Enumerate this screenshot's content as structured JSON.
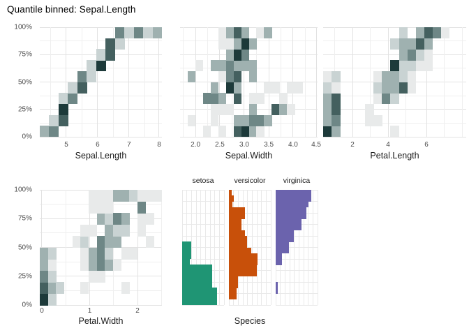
{
  "title": "Quantile binned: Sepal.Length",
  "palette": {
    "shades": [
      "#e8eaea",
      "#c9d3d3",
      "#9fb1b0",
      "#6e8786",
      "#44605f",
      "#1d3a3a"
    ],
    "grid_major": "#e2e2e2",
    "grid_minor": "#efefef",
    "species_grid": "#e9e9e9",
    "tick_text": "#4d4d4d",
    "axis_title_text": "#1a1a1a",
    "title_text": "#000000"
  },
  "y_axis": {
    "ticks": [
      {
        "label": "0%",
        "pos": 0
      },
      {
        "label": "25%",
        "pos": 0.25
      },
      {
        "label": "50%",
        "pos": 0.5
      },
      {
        "label": "75%",
        "pos": 0.75
      },
      {
        "label": "100%",
        "pos": 1
      }
    ]
  },
  "chart_data": {
    "type": "heatmap",
    "description": "Quantile-binned 2D bin plots of iris variables vs quantile of Sepal.Length, plus per-species horizontal histograms of the quantile.",
    "quantile_variable": "Sepal.Length",
    "quantile_bins_heatmap": 10,
    "quantile_bins_histogram": 20,
    "heatmaps": [
      {
        "id": "sepal_length",
        "xlabel": "Sepal.Length",
        "x_range": [
          4.2,
          8.1
        ],
        "cols": 13,
        "x_ticks": [
          {
            "label": "5",
            "pos": 0.217
          },
          {
            "label": "6",
            "pos": 0.474
          },
          {
            "label": "7",
            "pos": 0.731
          },
          {
            "label": "8",
            "pos": 0.977
          }
        ],
        "x_minor": [
          0.089,
          0.346,
          0.603,
          0.86
        ],
        "tiles": [
          [
            1,
            1,
            3
          ],
          [
            2,
            1,
            4
          ],
          [
            2,
            2,
            2
          ],
          [
            3,
            2,
            5
          ],
          [
            3,
            3,
            6
          ],
          [
            3,
            4,
            2
          ],
          [
            4,
            4,
            4
          ],
          [
            4,
            5,
            2
          ],
          [
            5,
            5,
            5
          ],
          [
            5,
            6,
            4
          ],
          [
            6,
            6,
            2
          ],
          [
            6,
            7,
            2
          ],
          [
            7,
            7,
            6
          ],
          [
            7,
            8,
            2
          ],
          [
            8,
            8,
            5
          ],
          [
            8,
            9,
            5
          ],
          [
            9,
            9,
            2
          ],
          [
            9,
            10,
            4
          ],
          [
            10,
            10,
            2
          ],
          [
            11,
            10,
            4
          ],
          [
            12,
            10,
            2
          ],
          [
            13,
            10,
            3
          ]
        ]
      },
      {
        "id": "sepal_width",
        "xlabel": "Sepal.Width",
        "x_range": [
          1.7,
          4.55
        ],
        "cols": 18,
        "x_ticks": [
          {
            "label": "2.0",
            "pos": 0.112
          },
          {
            "label": "2.5",
            "pos": 0.289
          },
          {
            "label": "3.0",
            "pos": 0.467
          },
          {
            "label": "3.5",
            "pos": 0.645
          },
          {
            "label": "4.0",
            "pos": 0.822
          },
          {
            "label": "4.5",
            "pos": 0.99
          }
        ],
        "x_minor": [
          0.023,
          0.2,
          0.378,
          0.556,
          0.733,
          0.911
        ],
        "tiles": [
          [
            4,
            1,
            1
          ],
          [
            6,
            1,
            1
          ],
          [
            8,
            1,
            5
          ],
          [
            9,
            1,
            6
          ],
          [
            10,
            1,
            3
          ],
          [
            11,
            1,
            1
          ],
          [
            2,
            2,
            1
          ],
          [
            5,
            2,
            1
          ],
          [
            8,
            2,
            3
          ],
          [
            9,
            2,
            3
          ],
          [
            10,
            2,
            4
          ],
          [
            11,
            2,
            4
          ],
          [
            12,
            2,
            3
          ],
          [
            5,
            3,
            1
          ],
          [
            6,
            3,
            1
          ],
          [
            7,
            3,
            1
          ],
          [
            10,
            3,
            3
          ],
          [
            13,
            3,
            5
          ],
          [
            14,
            3,
            3
          ],
          [
            15,
            3,
            1
          ],
          [
            4,
            4,
            4
          ],
          [
            5,
            4,
            4
          ],
          [
            6,
            4,
            3
          ],
          [
            8,
            4,
            5
          ],
          [
            10,
            4,
            1
          ],
          [
            11,
            4,
            1
          ],
          [
            14,
            4,
            1
          ],
          [
            5,
            5,
            3
          ],
          [
            7,
            5,
            6
          ],
          [
            8,
            5,
            3
          ],
          [
            12,
            5,
            1
          ],
          [
            13,
            5,
            1
          ],
          [
            15,
            5,
            1
          ],
          [
            16,
            5,
            1
          ],
          [
            2,
            6,
            3
          ],
          [
            6,
            6,
            1
          ],
          [
            7,
            6,
            4
          ],
          [
            8,
            6,
            5
          ],
          [
            10,
            6,
            3
          ],
          [
            3,
            7,
            1
          ],
          [
            5,
            7,
            3
          ],
          [
            6,
            7,
            3
          ],
          [
            7,
            7,
            4
          ],
          [
            8,
            7,
            3
          ],
          [
            9,
            7,
            3
          ],
          [
            10,
            7,
            3
          ],
          [
            7,
            8,
            3
          ],
          [
            8,
            8,
            6
          ],
          [
            9,
            8,
            4
          ],
          [
            6,
            9,
            1
          ],
          [
            7,
            9,
            1
          ],
          [
            8,
            9,
            3
          ],
          [
            9,
            9,
            6
          ],
          [
            10,
            9,
            3
          ],
          [
            6,
            10,
            1
          ],
          [
            7,
            10,
            3
          ],
          [
            8,
            10,
            5
          ],
          [
            9,
            10,
            3
          ],
          [
            11,
            10,
            1
          ],
          [
            12,
            10,
            3
          ]
        ]
      },
      {
        "id": "petal_length",
        "xlabel": "Petal.Length",
        "x_range": [
          0.6,
          8.0
        ],
        "cols": 17,
        "x_ticks": [
          {
            "label": "2",
            "pos": 0.205
          },
          {
            "label": "4",
            "pos": 0.454
          },
          {
            "label": "6",
            "pos": 0.722
          }
        ],
        "x_minor": [
          0.0805,
          0.3295,
          0.578,
          0.8465,
          0.971
        ],
        "tiles": [
          [
            1,
            1,
            6
          ],
          [
            2,
            1,
            3
          ],
          [
            9,
            1,
            1
          ],
          [
            1,
            2,
            3
          ],
          [
            2,
            2,
            4
          ],
          [
            6,
            2,
            1
          ],
          [
            7,
            2,
            1
          ],
          [
            1,
            3,
            3
          ],
          [
            2,
            3,
            5
          ],
          [
            6,
            3,
            1
          ],
          [
            1,
            4,
            3
          ],
          [
            2,
            4,
            5
          ],
          [
            7,
            4,
            1
          ],
          [
            8,
            4,
            4
          ],
          [
            9,
            4,
            2
          ],
          [
            1,
            5,
            2
          ],
          [
            2,
            5,
            1
          ],
          [
            7,
            5,
            2
          ],
          [
            8,
            5,
            3
          ],
          [
            9,
            5,
            3
          ],
          [
            10,
            5,
            5
          ],
          [
            11,
            5,
            1
          ],
          [
            1,
            6,
            1
          ],
          [
            2,
            6,
            2
          ],
          [
            7,
            6,
            1
          ],
          [
            8,
            6,
            3
          ],
          [
            9,
            6,
            3
          ],
          [
            10,
            6,
            2
          ],
          [
            11,
            6,
            1
          ],
          [
            9,
            7,
            6
          ],
          [
            10,
            7,
            2
          ],
          [
            11,
            7,
            2
          ],
          [
            12,
            7,
            1
          ],
          [
            13,
            7,
            1
          ],
          [
            10,
            8,
            3
          ],
          [
            11,
            8,
            4
          ],
          [
            12,
            8,
            2
          ],
          [
            13,
            8,
            1
          ],
          [
            9,
            9,
            2
          ],
          [
            10,
            9,
            3
          ],
          [
            11,
            9,
            3
          ],
          [
            12,
            9,
            5
          ],
          [
            13,
            9,
            3
          ],
          [
            10,
            10,
            2
          ],
          [
            12,
            10,
            3
          ],
          [
            13,
            10,
            5
          ],
          [
            14,
            10,
            4
          ],
          [
            15,
            10,
            1
          ]
        ]
      },
      {
        "id": "petal_width",
        "xlabel": "Petal.Width",
        "x_range": [
          -0.05,
          2.55
        ],
        "cols": 15,
        "x_ticks": [
          {
            "label": "0",
            "pos": 0.017
          },
          {
            "label": "1",
            "pos": 0.409
          },
          {
            "label": "2",
            "pos": 0.8
          }
        ],
        "x_minor": [
          0.213,
          0.605,
          0.997
        ],
        "tiles": [
          [
            1,
            1,
            6
          ],
          [
            2,
            1,
            2
          ],
          [
            1,
            2,
            5
          ],
          [
            2,
            2,
            3
          ],
          [
            3,
            2,
            2
          ],
          [
            6,
            2,
            1
          ],
          [
            11,
            2,
            1
          ],
          [
            1,
            3,
            4
          ],
          [
            2,
            3,
            2
          ],
          [
            7,
            3,
            1
          ],
          [
            8,
            3,
            1
          ],
          [
            1,
            4,
            3
          ],
          [
            2,
            4,
            1
          ],
          [
            6,
            4,
            1
          ],
          [
            7,
            4,
            3
          ],
          [
            8,
            4,
            4
          ],
          [
            9,
            4,
            3
          ],
          [
            10,
            4,
            1
          ],
          [
            1,
            5,
            3
          ],
          [
            2,
            5,
            2
          ],
          [
            6,
            5,
            1
          ],
          [
            7,
            5,
            3
          ],
          [
            8,
            5,
            4
          ],
          [
            9,
            5,
            2
          ],
          [
            11,
            5,
            1
          ],
          [
            12,
            5,
            1
          ],
          [
            5,
            6,
            1
          ],
          [
            6,
            6,
            2
          ],
          [
            8,
            6,
            4
          ],
          [
            9,
            6,
            3
          ],
          [
            10,
            6,
            3
          ],
          [
            14,
            6,
            1
          ],
          [
            6,
            7,
            1
          ],
          [
            7,
            7,
            1
          ],
          [
            9,
            7,
            3
          ],
          [
            10,
            7,
            2
          ],
          [
            11,
            7,
            2
          ],
          [
            13,
            7,
            1
          ],
          [
            8,
            8,
            3
          ],
          [
            9,
            8,
            2
          ],
          [
            10,
            8,
            4
          ],
          [
            11,
            8,
            3
          ],
          [
            13,
            8,
            1
          ],
          [
            14,
            8,
            1
          ],
          [
            7,
            9,
            1
          ],
          [
            8,
            9,
            1
          ],
          [
            9,
            9,
            1
          ],
          [
            13,
            9,
            4
          ],
          [
            7,
            10,
            1
          ],
          [
            8,
            10,
            1
          ],
          [
            9,
            10,
            1
          ],
          [
            10,
            10,
            3
          ],
          [
            11,
            10,
            3
          ],
          [
            12,
            10,
            2
          ],
          [
            13,
            10,
            1
          ],
          [
            14,
            10,
            1
          ],
          [
            15,
            10,
            1
          ]
        ]
      }
    ],
    "species_histograms": {
      "xlabel": "Species",
      "orientation": "horizontal-bars-on-quantile-axis",
      "panels": [
        {
          "label": "setosa",
          "color": "#1f9574",
          "bars": [
            0.84,
            0.84,
            0.84,
            0.72,
            0.72,
            0.72,
            0.72,
            0.18,
            0.22,
            0.22,
            0.22,
            0,
            0,
            0,
            0,
            0,
            0,
            0,
            0,
            0
          ]
        },
        {
          "label": "versicolor",
          "color": "#c8500a",
          "bars": [
            0,
            0.18,
            0.18,
            0.21,
            0.21,
            0.67,
            0.67,
            0.68,
            0.68,
            0.53,
            0.44,
            0.44,
            0.38,
            0.3,
            0.3,
            0.38,
            0.38,
            0.09,
            0.12,
            0.06
          ]
        },
        {
          "label": "virginica",
          "color": "#6b63ad",
          "bars": [
            0,
            0,
            0.05,
            0.05,
            0,
            0,
            0,
            0.15,
            0.15,
            0.32,
            0.32,
            0.44,
            0.44,
            0.62,
            0.62,
            0.74,
            0.74,
            0.78,
            0.85,
            0.85
          ]
        }
      ]
    }
  }
}
